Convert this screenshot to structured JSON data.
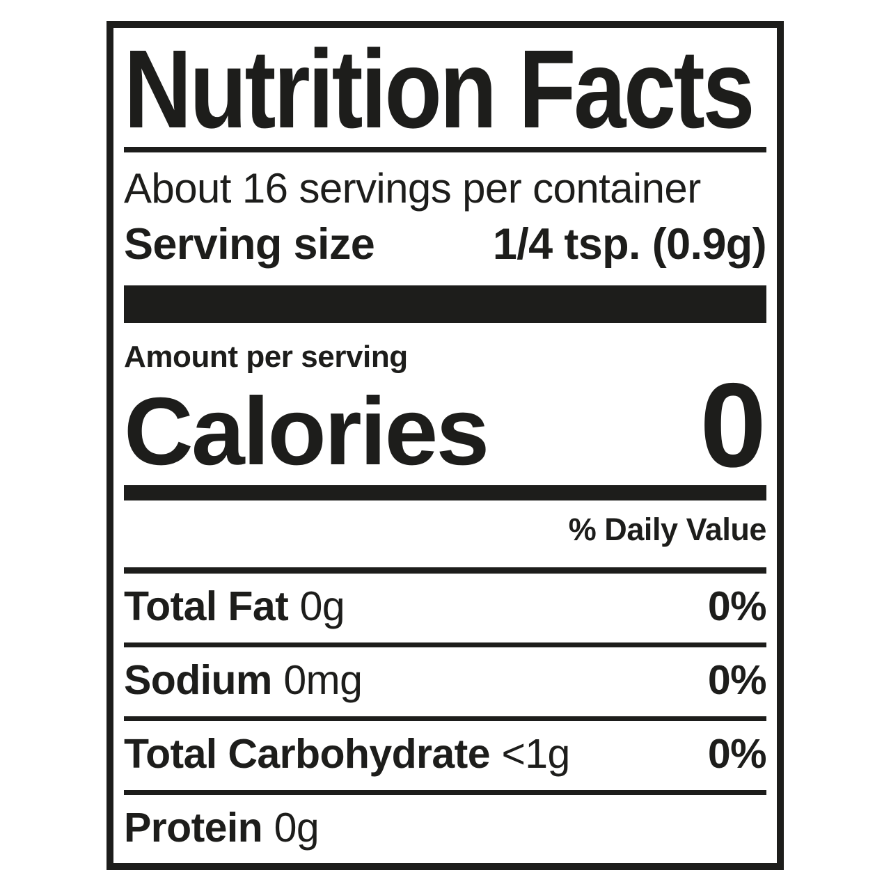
{
  "label": {
    "title": "Nutrition Facts",
    "servings_per_container": "About 16 servings per container",
    "serving_size": {
      "label": "Serving size",
      "value": "1/4 tsp. (0.9g)"
    },
    "amount_per_serving_label": "Amount per serving",
    "calories": {
      "label": "Calories",
      "value": "0"
    },
    "daily_value_header": "% Daily Value",
    "nutrients": [
      {
        "name": "Total Fat",
        "amount": "0g",
        "dv": "0%"
      },
      {
        "name": "Sodium",
        "amount": "0mg",
        "dv": "0%"
      },
      {
        "name": "Total Carbohydrate",
        "amount": "<1g",
        "dv": "0%"
      },
      {
        "name": "Protein",
        "amount": "0g",
        "dv": ""
      }
    ],
    "colors": {
      "ink": "#1d1d1b",
      "background": "#ffffff"
    }
  }
}
